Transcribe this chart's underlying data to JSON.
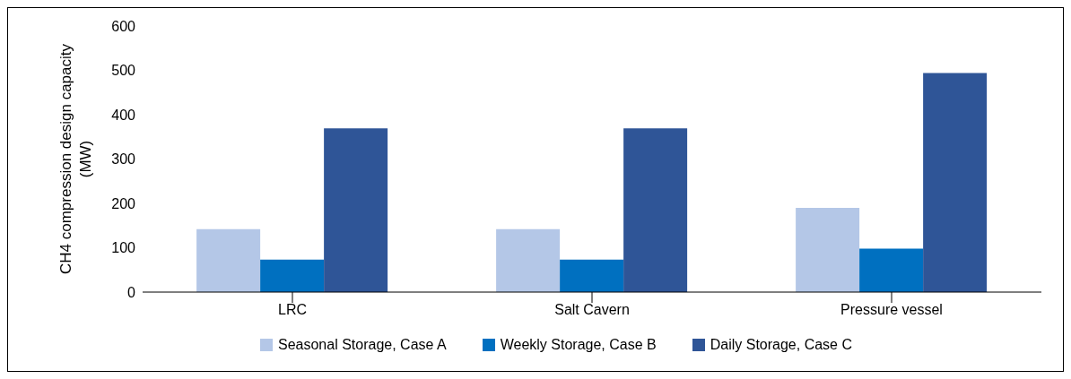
{
  "chart_data": {
    "type": "bar",
    "ylabel": "CH4 compression design capacity (MW)",
    "categories": [
      "LRC",
      "Salt Cavern",
      "Pressure vessel"
    ],
    "series": [
      {
        "name": "Seasonal Storage, Case A",
        "color": "#b4c7e7",
        "values": [
          142,
          142,
          190
        ]
      },
      {
        "name": "Weekly Storage, Case B",
        "color": "#0070c0",
        "values": [
          73,
          73,
          98
        ]
      },
      {
        "name": "Daily Storage, Case C",
        "color": "#2f5597",
        "values": [
          369,
          369,
          494
        ]
      }
    ],
    "ylim": [
      0,
      600
    ],
    "yticks": [
      0,
      100,
      200,
      300,
      400,
      500,
      600
    ],
    "grid": false,
    "legend": "bottom"
  }
}
